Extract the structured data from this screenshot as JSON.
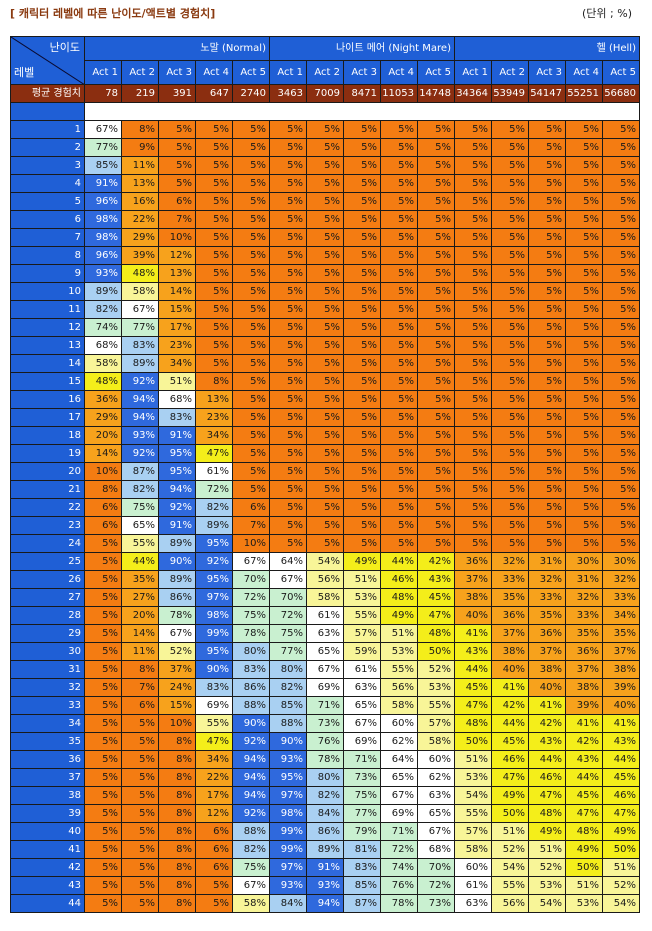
{
  "title": "[ 캐릭터 레벨에 따른 난이도/액트별 경험치]",
  "unit": "(단위 ; %)",
  "header": {
    "corner_top": "난이도",
    "corner_bottom": "레벨",
    "difficulties": [
      "노말 (Normal)",
      "나이트 메어 (Night Mare)",
      "헬 (Hell)"
    ],
    "acts": [
      "Act 1",
      "Act 2",
      "Act 3",
      "Act 4",
      "Act 5"
    ]
  },
  "avg_label": "평균 경험치",
  "avg_values": [
    78,
    219,
    391,
    647,
    2740,
    3463,
    7009,
    8471,
    11053,
    14748,
    34364,
    53949,
    54147,
    55251,
    56680
  ],
  "rows": [
    {
      "level": 1,
      "values": [
        "67%",
        "8%",
        "5%",
        "5%",
        "5%",
        "5%",
        "5%",
        "5%",
        "5%",
        "5%",
        "5%",
        "5%",
        "5%",
        "5%",
        "5%"
      ]
    },
    {
      "level": 2,
      "values": [
        "77%",
        "9%",
        "5%",
        "5%",
        "5%",
        "5%",
        "5%",
        "5%",
        "5%",
        "5%",
        "5%",
        "5%",
        "5%",
        "5%",
        "5%"
      ]
    },
    {
      "level": 3,
      "values": [
        "85%",
        "11%",
        "5%",
        "5%",
        "5%",
        "5%",
        "5%",
        "5%",
        "5%",
        "5%",
        "5%",
        "5%",
        "5%",
        "5%",
        "5%"
      ]
    },
    {
      "level": 4,
      "values": [
        "91%",
        "13%",
        "5%",
        "5%",
        "5%",
        "5%",
        "5%",
        "5%",
        "5%",
        "5%",
        "5%",
        "5%",
        "5%",
        "5%",
        "5%"
      ]
    },
    {
      "level": 5,
      "values": [
        "96%",
        "16%",
        "6%",
        "5%",
        "5%",
        "5%",
        "5%",
        "5%",
        "5%",
        "5%",
        "5%",
        "5%",
        "5%",
        "5%",
        "5%"
      ]
    },
    {
      "level": 6,
      "values": [
        "98%",
        "22%",
        "7%",
        "5%",
        "5%",
        "5%",
        "5%",
        "5%",
        "5%",
        "5%",
        "5%",
        "5%",
        "5%",
        "5%",
        "5%"
      ]
    },
    {
      "level": 7,
      "values": [
        "98%",
        "29%",
        "10%",
        "5%",
        "5%",
        "5%",
        "5%",
        "5%",
        "5%",
        "5%",
        "5%",
        "5%",
        "5%",
        "5%",
        "5%"
      ]
    },
    {
      "level": 8,
      "values": [
        "96%",
        "39%",
        "12%",
        "5%",
        "5%",
        "5%",
        "5%",
        "5%",
        "5%",
        "5%",
        "5%",
        "5%",
        "5%",
        "5%",
        "5%"
      ]
    },
    {
      "level": 9,
      "values": [
        "93%",
        "48%",
        "13%",
        "5%",
        "5%",
        "5%",
        "5%",
        "5%",
        "5%",
        "5%",
        "5%",
        "5%",
        "5%",
        "5%",
        "5%"
      ]
    },
    {
      "level": 10,
      "values": [
        "89%",
        "58%",
        "14%",
        "5%",
        "5%",
        "5%",
        "5%",
        "5%",
        "5%",
        "5%",
        "5%",
        "5%",
        "5%",
        "5%",
        "5%"
      ]
    },
    {
      "level": 11,
      "values": [
        "82%",
        "67%",
        "15%",
        "5%",
        "5%",
        "5%",
        "5%",
        "5%",
        "5%",
        "5%",
        "5%",
        "5%",
        "5%",
        "5%",
        "5%"
      ]
    },
    {
      "level": 12,
      "values": [
        "74%",
        "77%",
        "17%",
        "5%",
        "5%",
        "5%",
        "5%",
        "5%",
        "5%",
        "5%",
        "5%",
        "5%",
        "5%",
        "5%",
        "5%"
      ]
    },
    {
      "level": 13,
      "values": [
        "68%",
        "83%",
        "23%",
        "5%",
        "5%",
        "5%",
        "5%",
        "5%",
        "5%",
        "5%",
        "5%",
        "5%",
        "5%",
        "5%",
        "5%"
      ]
    },
    {
      "level": 14,
      "values": [
        "58%",
        "89%",
        "34%",
        "5%",
        "5%",
        "5%",
        "5%",
        "5%",
        "5%",
        "5%",
        "5%",
        "5%",
        "5%",
        "5%",
        "5%"
      ]
    },
    {
      "level": 15,
      "values": [
        "48%",
        "92%",
        "51%",
        "8%",
        "5%",
        "5%",
        "5%",
        "5%",
        "5%",
        "5%",
        "5%",
        "5%",
        "5%",
        "5%",
        "5%"
      ]
    },
    {
      "level": 16,
      "values": [
        "36%",
        "94%",
        "68%",
        "13%",
        "5%",
        "5%",
        "5%",
        "5%",
        "5%",
        "5%",
        "5%",
        "5%",
        "5%",
        "5%",
        "5%"
      ]
    },
    {
      "level": 17,
      "values": [
        "29%",
        "94%",
        "83%",
        "23%",
        "5%",
        "5%",
        "5%",
        "5%",
        "5%",
        "5%",
        "5%",
        "5%",
        "5%",
        "5%",
        "5%"
      ]
    },
    {
      "level": 18,
      "values": [
        "20%",
        "93%",
        "91%",
        "34%",
        "5%",
        "5%",
        "5%",
        "5%",
        "5%",
        "5%",
        "5%",
        "5%",
        "5%",
        "5%",
        "5%"
      ]
    },
    {
      "level": 19,
      "values": [
        "14%",
        "92%",
        "95%",
        "47%",
        "5%",
        "5%",
        "5%",
        "5%",
        "5%",
        "5%",
        "5%",
        "5%",
        "5%",
        "5%",
        "5%"
      ]
    },
    {
      "level": 20,
      "values": [
        "10%",
        "87%",
        "95%",
        "61%",
        "5%",
        "5%",
        "5%",
        "5%",
        "5%",
        "5%",
        "5%",
        "5%",
        "5%",
        "5%",
        "5%"
      ]
    },
    {
      "level": 21,
      "values": [
        "8%",
        "82%",
        "94%",
        "72%",
        "5%",
        "5%",
        "5%",
        "5%",
        "5%",
        "5%",
        "5%",
        "5%",
        "5%",
        "5%",
        "5%"
      ]
    },
    {
      "level": 22,
      "values": [
        "6%",
        "75%",
        "92%",
        "82%",
        "6%",
        "5%",
        "5%",
        "5%",
        "5%",
        "5%",
        "5%",
        "5%",
        "5%",
        "5%",
        "5%"
      ]
    },
    {
      "level": 23,
      "values": [
        "6%",
        "65%",
        "91%",
        "89%",
        "7%",
        "5%",
        "5%",
        "5%",
        "5%",
        "5%",
        "5%",
        "5%",
        "5%",
        "5%",
        "5%"
      ]
    },
    {
      "level": 24,
      "values": [
        "5%",
        "55%",
        "89%",
        "95%",
        "10%",
        "5%",
        "5%",
        "5%",
        "5%",
        "5%",
        "5%",
        "5%",
        "5%",
        "5%",
        "5%"
      ]
    },
    {
      "level": 25,
      "values": [
        "5%",
        "44%",
        "90%",
        "92%",
        "67%",
        "64%",
        "54%",
        "49%",
        "44%",
        "42%",
        "36%",
        "32%",
        "31%",
        "30%",
        "30%"
      ]
    },
    {
      "level": 26,
      "values": [
        "5%",
        "35%",
        "89%",
        "95%",
        "70%",
        "67%",
        "56%",
        "51%",
        "46%",
        "43%",
        "37%",
        "33%",
        "32%",
        "31%",
        "32%"
      ]
    },
    {
      "level": 27,
      "values": [
        "5%",
        "27%",
        "86%",
        "97%",
        "72%",
        "70%",
        "58%",
        "53%",
        "48%",
        "45%",
        "38%",
        "35%",
        "33%",
        "32%",
        "33%"
      ]
    },
    {
      "level": 28,
      "values": [
        "5%",
        "20%",
        "78%",
        "98%",
        "75%",
        "72%",
        "61%",
        "55%",
        "49%",
        "47%",
        "40%",
        "36%",
        "35%",
        "33%",
        "34%"
      ]
    },
    {
      "level": 29,
      "values": [
        "5%",
        "14%",
        "67%",
        "99%",
        "78%",
        "75%",
        "63%",
        "57%",
        "51%",
        "48%",
        "41%",
        "37%",
        "36%",
        "35%",
        "35%"
      ]
    },
    {
      "level": 30,
      "values": [
        "5%",
        "11%",
        "52%",
        "95%",
        "80%",
        "77%",
        "65%",
        "59%",
        "53%",
        "50%",
        "43%",
        "38%",
        "37%",
        "36%",
        "37%"
      ]
    },
    {
      "level": 31,
      "values": [
        "5%",
        "8%",
        "37%",
        "90%",
        "83%",
        "80%",
        "67%",
        "61%",
        "55%",
        "52%",
        "44%",
        "40%",
        "38%",
        "37%",
        "38%"
      ]
    },
    {
      "level": 32,
      "values": [
        "5%",
        "7%",
        "24%",
        "83%",
        "86%",
        "82%",
        "69%",
        "63%",
        "56%",
        "53%",
        "45%",
        "41%",
        "40%",
        "38%",
        "39%"
      ]
    },
    {
      "level": 33,
      "values": [
        "5%",
        "6%",
        "15%",
        "69%",
        "88%",
        "85%",
        "71%",
        "65%",
        "58%",
        "55%",
        "47%",
        "42%",
        "41%",
        "39%",
        "40%"
      ]
    },
    {
      "level": 34,
      "values": [
        "5%",
        "5%",
        "10%",
        "55%",
        "90%",
        "88%",
        "73%",
        "67%",
        "60%",
        "57%",
        "48%",
        "44%",
        "42%",
        "41%",
        "41%"
      ]
    },
    {
      "level": 35,
      "values": [
        "5%",
        "5%",
        "8%",
        "47%",
        "92%",
        "90%",
        "76%",
        "69%",
        "62%",
        "58%",
        "50%",
        "45%",
        "43%",
        "42%",
        "43%"
      ]
    },
    {
      "level": 36,
      "values": [
        "5%",
        "5%",
        "8%",
        "34%",
        "94%",
        "93%",
        "78%",
        "71%",
        "64%",
        "60%",
        "51%",
        "46%",
        "44%",
        "43%",
        "44%"
      ]
    },
    {
      "level": 37,
      "values": [
        "5%",
        "5%",
        "8%",
        "22%",
        "94%",
        "95%",
        "80%",
        "73%",
        "65%",
        "62%",
        "53%",
        "47%",
        "46%",
        "44%",
        "45%"
      ]
    },
    {
      "level": 38,
      "values": [
        "5%",
        "5%",
        "8%",
        "17%",
        "94%",
        "97%",
        "82%",
        "75%",
        "67%",
        "63%",
        "54%",
        "49%",
        "47%",
        "45%",
        "46%"
      ]
    },
    {
      "level": 39,
      "values": [
        "5%",
        "5%",
        "8%",
        "12%",
        "92%",
        "98%",
        "84%",
        "77%",
        "69%",
        "65%",
        "55%",
        "50%",
        "48%",
        "47%",
        "47%"
      ]
    },
    {
      "level": 40,
      "values": [
        "5%",
        "5%",
        "8%",
        "6%",
        "88%",
        "99%",
        "86%",
        "79%",
        "71%",
        "67%",
        "57%",
        "51%",
        "49%",
        "48%",
        "49%"
      ]
    },
    {
      "level": 41,
      "values": [
        "5%",
        "5%",
        "8%",
        "6%",
        "82%",
        "99%",
        "89%",
        "81%",
        "72%",
        "68%",
        "58%",
        "52%",
        "51%",
        "49%",
        "50%"
      ]
    },
    {
      "level": 42,
      "values": [
        "5%",
        "5%",
        "8%",
        "6%",
        "75%",
        "97%",
        "91%",
        "83%",
        "74%",
        "70%",
        "60%",
        "54%",
        "52%",
        "50%",
        "51%"
      ]
    },
    {
      "level": 43,
      "values": [
        "5%",
        "5%",
        "8%",
        "5%",
        "67%",
        "93%",
        "93%",
        "85%",
        "76%",
        "72%",
        "61%",
        "55%",
        "53%",
        "51%",
        "52%"
      ]
    },
    {
      "level": 44,
      "values": [
        "5%",
        "5%",
        "8%",
        "5%",
        "58%",
        "84%",
        "94%",
        "87%",
        "78%",
        "73%",
        "63%",
        "56%",
        "54%",
        "53%",
        "54%"
      ]
    }
  ],
  "colors": {
    "header_blue": "#1f5fd6",
    "avg_brown": "#8b2e10",
    "orange": "#f47c12",
    "light_orange": "#f7a21c",
    "yellow": "#f4ee1a",
    "pale_yellow": "#f8f598",
    "white": "#ffffff",
    "light_green": "#c9f0d0",
    "light_blue": "#a9d0f2",
    "blue": "#2f69dd"
  }
}
